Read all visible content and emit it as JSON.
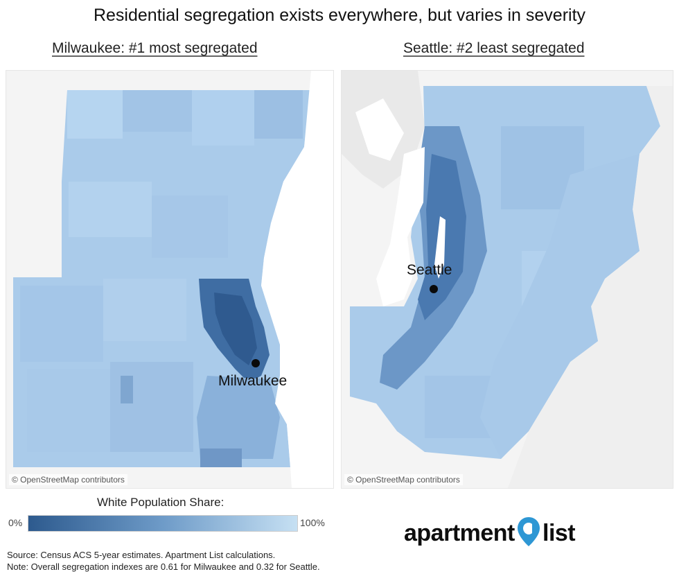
{
  "title": "Residential segregation exists everywhere, but varies in severity",
  "maps": [
    {
      "subtitle": "Milwaukee: #1 most segregated",
      "city_label": "Milwaukee",
      "attribution": "© OpenStreetMap contributors"
    },
    {
      "subtitle": "Seattle: #2 least segregated",
      "city_label": "Seattle",
      "attribution": "© OpenStreetMap contributors"
    }
  ],
  "legend": {
    "title": "White Population Share:",
    "min_label": "0%",
    "max_label": "100%",
    "color_low": "#2d5a8e",
    "color_high": "#c6e0f3"
  },
  "source": {
    "line1": "Source: Census ACS 5-year estimates. Apartment List calculations.",
    "line2": "Note: Overall segregation indexes are 0.61 for Milwaukee and 0.32 for Seattle."
  },
  "logo": {
    "part1": "apartment",
    "part2": "list",
    "pin_color": "#2e97d4"
  },
  "colors": {
    "map_base": "#a9cbe9",
    "map_mid": "#7fa9d6",
    "map_dark": "#3a6a9f",
    "water": "#ffffff",
    "land_background": "#f0f0f0"
  }
}
